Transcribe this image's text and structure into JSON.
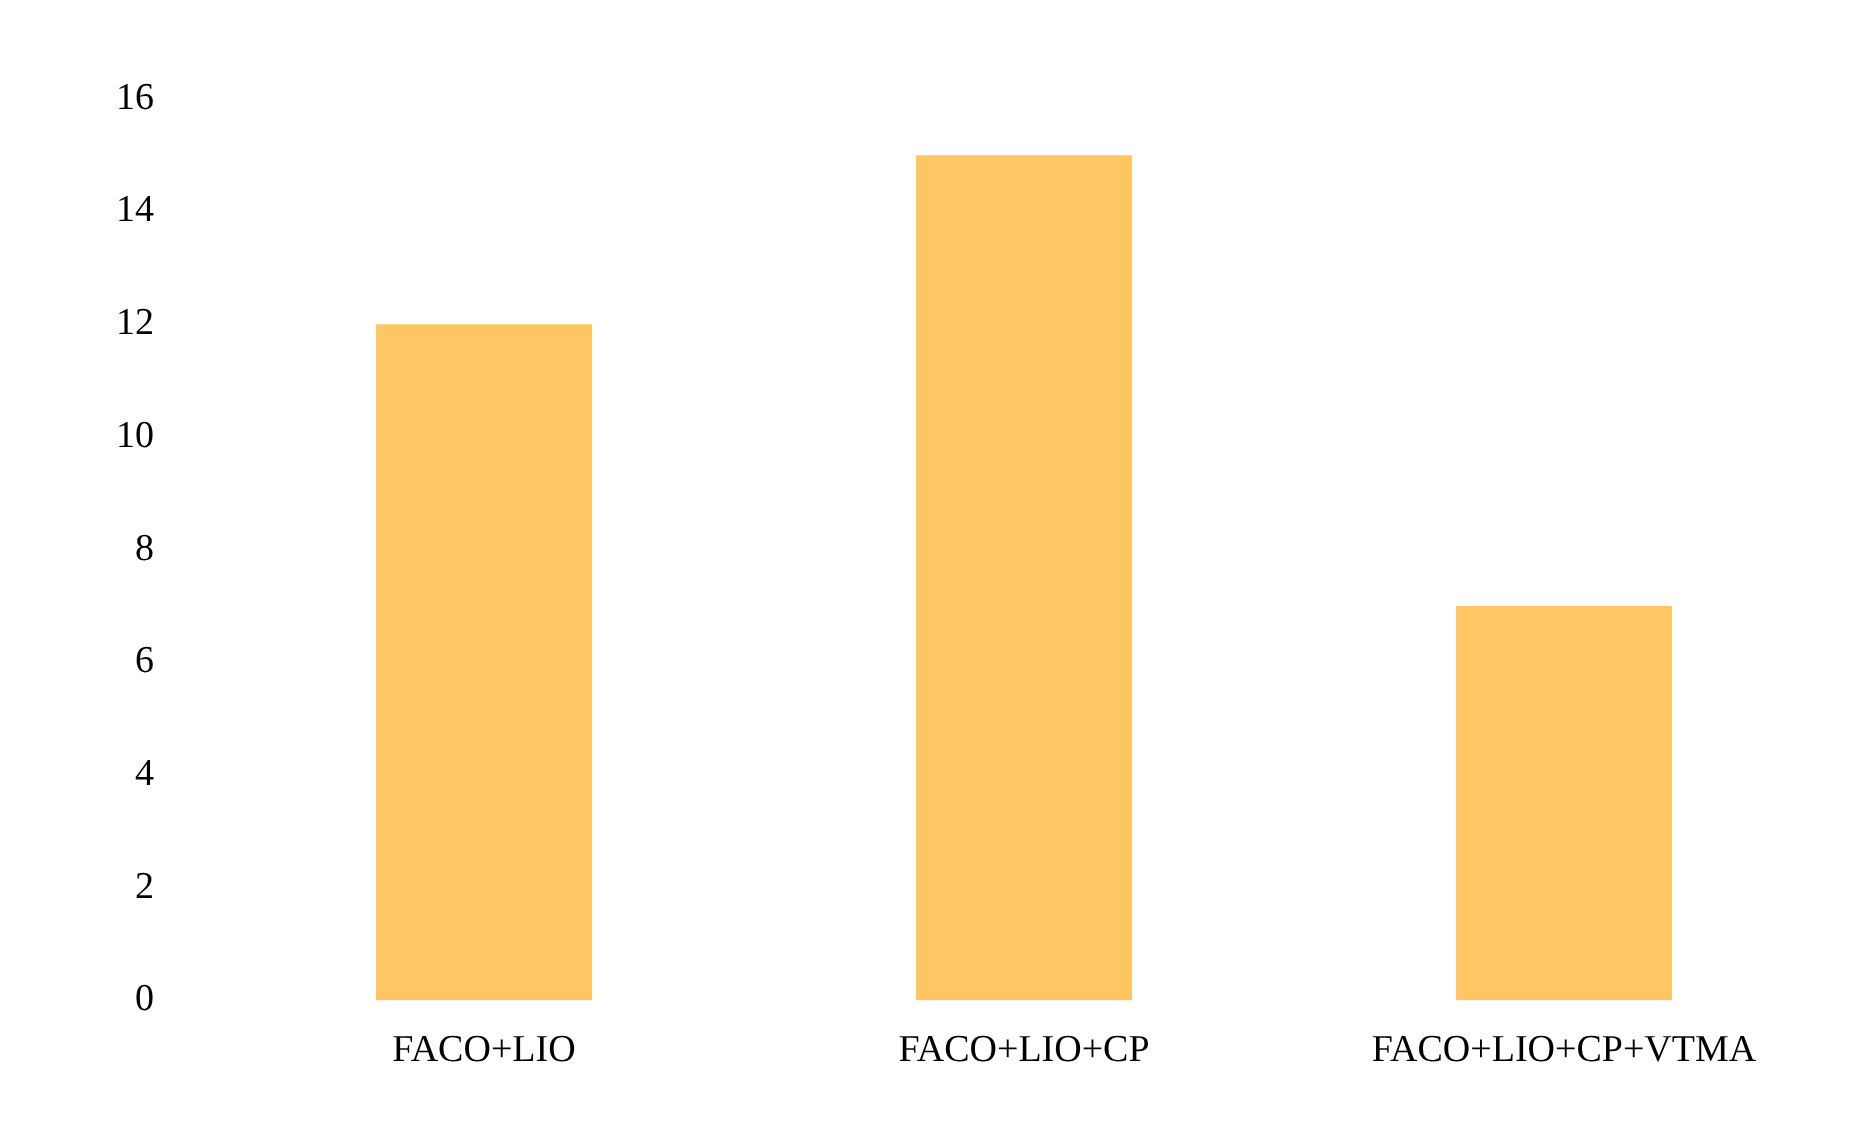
{
  "chart_data": {
    "type": "bar",
    "categories": [
      "FACO+LIO",
      "FACO+LIO+CP",
      "FACO+LIO+CP+VTMA"
    ],
    "values": [
      12,
      15,
      7
    ],
    "color": "#ffc663",
    "ylim": [
      0,
      16
    ],
    "yticks": [
      0,
      2,
      4,
      6,
      8,
      10,
      12,
      14,
      16
    ],
    "grid": false
  }
}
